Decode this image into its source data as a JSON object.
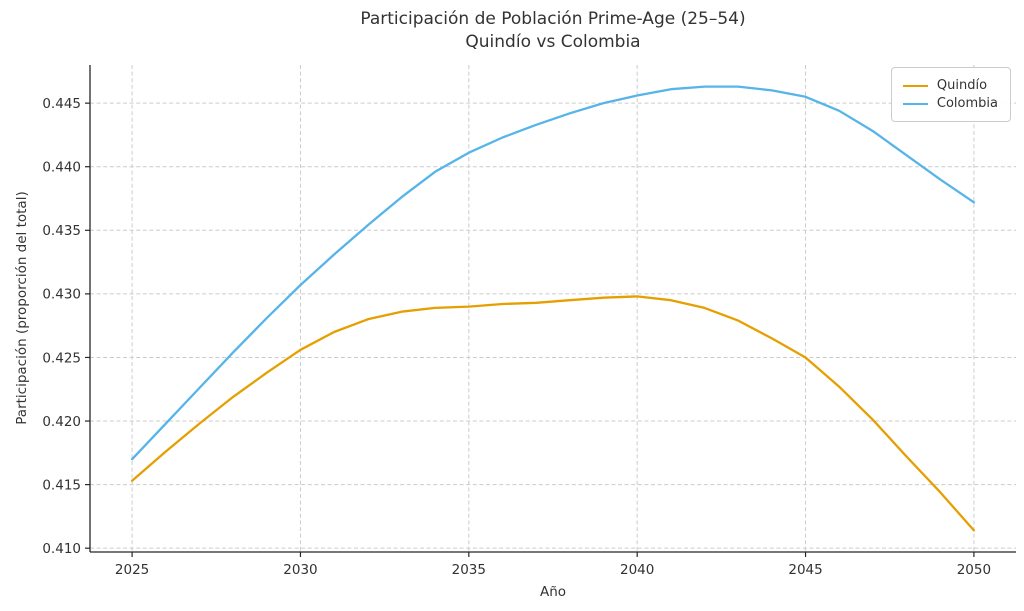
{
  "title": {
    "line1": "Participación de Población Prime-Age (25–54)",
    "line2": "Quindío vs Colombia"
  },
  "chart_data": {
    "type": "line",
    "title": "Participación de Población Prime-Age (25–54) — Quindío vs Colombia",
    "xlabel": "Año",
    "ylabel": "Participación (proporción del total)",
    "x": [
      2025,
      2026,
      2027,
      2028,
      2029,
      2030,
      2031,
      2032,
      2033,
      2034,
      2035,
      2036,
      2037,
      2038,
      2039,
      2040,
      2041,
      2042,
      2043,
      2044,
      2045,
      2046,
      2047,
      2048,
      2049,
      2050
    ],
    "series": [
      {
        "name": "Quindío",
        "color": "#E69F00",
        "values": [
          0.4153,
          0.4176,
          0.4198,
          0.4219,
          0.4238,
          0.4256,
          0.427,
          0.428,
          0.4286,
          0.4289,
          0.429,
          0.4292,
          0.4293,
          0.4295,
          0.4297,
          0.4298,
          0.4295,
          0.4289,
          0.4279,
          0.4265,
          0.425,
          0.4227,
          0.4201,
          0.4172,
          0.4144,
          0.4114
        ]
      },
      {
        "name": "Colombia",
        "color": "#56B4E9",
        "values": [
          0.417,
          0.4198,
          0.4226,
          0.4254,
          0.4281,
          0.4307,
          0.4331,
          0.4354,
          0.4376,
          0.4396,
          0.4411,
          0.4423,
          0.4433,
          0.4442,
          0.445,
          0.4456,
          0.4461,
          0.4463,
          0.4463,
          0.446,
          0.4455,
          0.4444,
          0.4428,
          0.4409,
          0.439,
          0.4372
        ]
      }
    ],
    "xlim": [
      2023.75,
      2051.25
    ],
    "ylim": [
      0.4097,
      0.448
    ],
    "xticks": [
      2025,
      2030,
      2035,
      2040,
      2045,
      2050
    ],
    "xtick_labels": [
      "2025",
      "2030",
      "2035",
      "2040",
      "2045",
      "2050"
    ],
    "yticks": [
      0.41,
      0.415,
      0.42,
      0.425,
      0.43,
      0.435,
      0.44,
      0.445
    ],
    "ytick_labels": [
      "0.410",
      "0.415",
      "0.420",
      "0.425",
      "0.430",
      "0.435",
      "0.440",
      "0.445"
    ],
    "grid": true,
    "grid_linestyle": "dashed",
    "grid_color": "#cccccc",
    "spine_color": "#262626",
    "text_color": "#333333",
    "legend_position": "upper right"
  },
  "legend": {
    "items": [
      {
        "label": "Quindío",
        "color": "#E69F00"
      },
      {
        "label": "Colombia",
        "color": "#56B4E9"
      }
    ]
  }
}
